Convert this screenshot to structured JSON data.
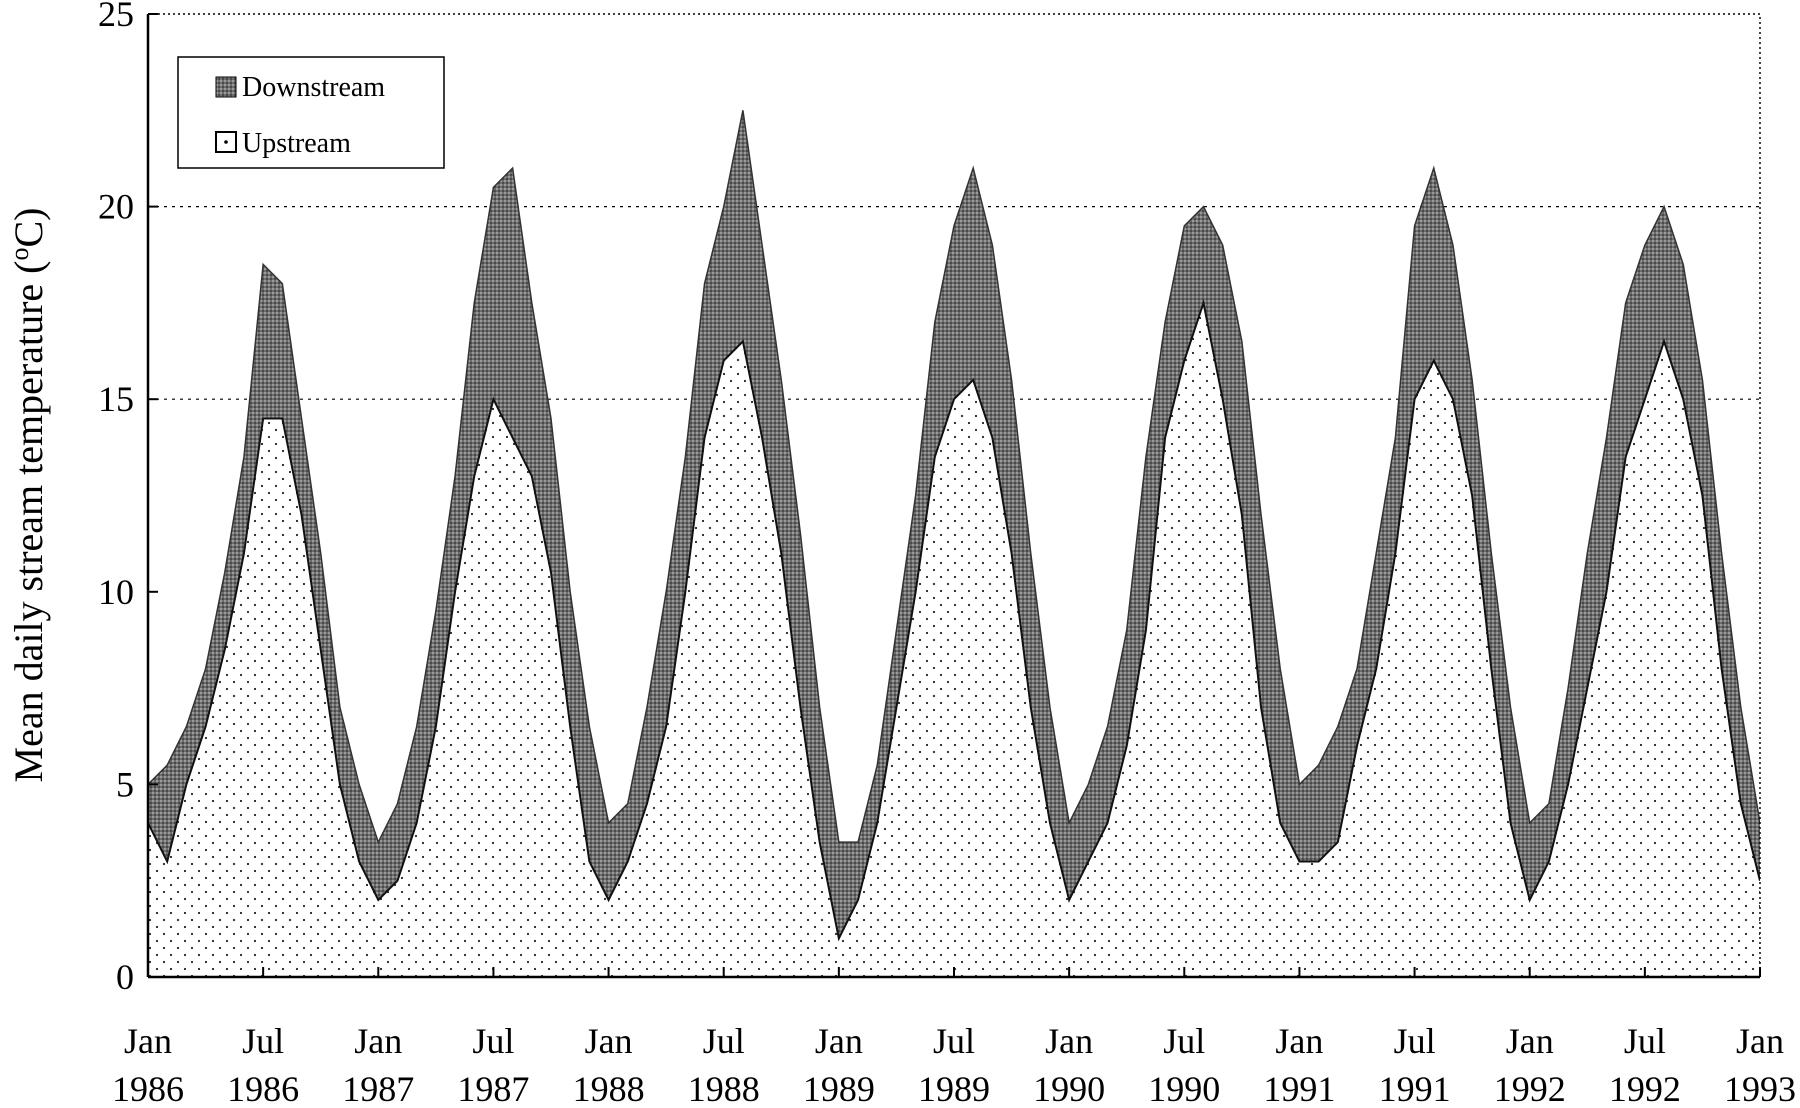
{
  "chart_data": {
    "type": "area",
    "ylabel": "Mean daily stream temperature (",
    "ylabel_sup": "o",
    "ylabel_unit": "C)",
    "ylim": [
      0,
      25
    ],
    "yticks": [
      0,
      5,
      10,
      15,
      20,
      25
    ],
    "xlim": [
      "1986-01",
      "1993-01"
    ],
    "xticks": [
      {
        "month": "Jan",
        "year": "1986",
        "date": "1986-01"
      },
      {
        "month": "Jul",
        "year": "1986",
        "date": "1986-07"
      },
      {
        "month": "Jan",
        "year": "1987",
        "date": "1987-01"
      },
      {
        "month": "Jul",
        "year": "1987",
        "date": "1987-07"
      },
      {
        "month": "Jan",
        "year": "1988",
        "date": "1988-01"
      },
      {
        "month": "Jul",
        "year": "1988",
        "date": "1988-07"
      },
      {
        "month": "Jan",
        "year": "1989",
        "date": "1989-01"
      },
      {
        "month": "Jul",
        "year": "1989",
        "date": "1989-07"
      },
      {
        "month": "Jan",
        "year": "1990",
        "date": "1990-01"
      },
      {
        "month": "Jul",
        "year": "1990",
        "date": "1990-07"
      },
      {
        "month": "Jan",
        "year": "1991",
        "date": "1991-01"
      },
      {
        "month": "Jul",
        "year": "1991",
        "date": "1991-07"
      },
      {
        "month": "Jan",
        "year": "1992",
        "date": "1992-01"
      },
      {
        "month": "Jul",
        "year": "1992",
        "date": "1992-07"
      },
      {
        "month": "Jan",
        "year": "1993",
        "date": "1993-01"
      }
    ],
    "grid": {
      "y": true,
      "style": "dotted",
      "lines": [
        15,
        20
      ]
    },
    "legend": {
      "placement": "top-left",
      "entries": [
        "Downstream",
        "Upstream"
      ]
    },
    "series": [
      {
        "name": "Downstream",
        "fill": "dark-crosshatch",
        "x": [
          "1986-01",
          "1986-02",
          "1986-03",
          "1986-04",
          "1986-05",
          "1986-06",
          "1986-07",
          "1986-08",
          "1986-09",
          "1986-10",
          "1986-11",
          "1986-12",
          "1987-01",
          "1987-02",
          "1987-03",
          "1987-04",
          "1987-05",
          "1987-06",
          "1987-07",
          "1987-08",
          "1987-09",
          "1987-10",
          "1987-11",
          "1987-12",
          "1988-01",
          "1988-02",
          "1988-03",
          "1988-04",
          "1988-05",
          "1988-06",
          "1988-07",
          "1988-08",
          "1988-09",
          "1988-10",
          "1988-11",
          "1988-12",
          "1989-01",
          "1989-02",
          "1989-03",
          "1989-04",
          "1989-05",
          "1989-06",
          "1989-07",
          "1989-08",
          "1989-09",
          "1989-10",
          "1989-11",
          "1989-12",
          "1990-01",
          "1990-02",
          "1990-03",
          "1990-04",
          "1990-05",
          "1990-06",
          "1990-07",
          "1990-08",
          "1990-09",
          "1990-10",
          "1990-11",
          "1990-12",
          "1991-01",
          "1991-02",
          "1991-03",
          "1991-04",
          "1991-05",
          "1991-06",
          "1991-07",
          "1991-08",
          "1991-09",
          "1991-10",
          "1991-11",
          "1991-12",
          "1992-01",
          "1992-02",
          "1992-03",
          "1992-04",
          "1992-05",
          "1992-06",
          "1992-07",
          "1992-08",
          "1992-09",
          "1992-10",
          "1992-11",
          "1992-12",
          "1993-01"
        ],
        "y": [
          5.0,
          5.5,
          6.5,
          8.0,
          10.5,
          13.5,
          18.5,
          18.0,
          14.5,
          11.0,
          7.0,
          5.0,
          3.5,
          4.5,
          6.5,
          9.5,
          13.0,
          17.5,
          20.5,
          21.0,
          17.5,
          14.5,
          10.0,
          6.5,
          4.0,
          4.5,
          7.0,
          10.0,
          13.5,
          18.0,
          20.0,
          22.5,
          19.0,
          15.5,
          11.5,
          7.0,
          3.5,
          3.5,
          5.5,
          9.0,
          12.5,
          17.0,
          19.5,
          21.0,
          19.0,
          15.5,
          11.0,
          7.0,
          4.0,
          5.0,
          6.5,
          9.0,
          13.5,
          17.0,
          19.5,
          20.0,
          19.0,
          16.5,
          12.0,
          8.0,
          5.0,
          5.5,
          6.5,
          8.0,
          11.0,
          14.0,
          19.5,
          21.0,
          19.0,
          15.5,
          11.0,
          7.0,
          4.0,
          4.5,
          7.5,
          11.0,
          14.0,
          17.5,
          19.0,
          20.0,
          18.5,
          15.5,
          11.0,
          7.0,
          4.0
        ]
      },
      {
        "name": "Upstream",
        "fill": "dotted",
        "x": [
          "1986-01",
          "1986-02",
          "1986-03",
          "1986-04",
          "1986-05",
          "1986-06",
          "1986-07",
          "1986-08",
          "1986-09",
          "1986-10",
          "1986-11",
          "1986-12",
          "1987-01",
          "1987-02",
          "1987-03",
          "1987-04",
          "1987-05",
          "1987-06",
          "1987-07",
          "1987-08",
          "1987-09",
          "1987-10",
          "1987-11",
          "1987-12",
          "1988-01",
          "1988-02",
          "1988-03",
          "1988-04",
          "1988-05",
          "1988-06",
          "1988-07",
          "1988-08",
          "1988-09",
          "1988-10",
          "1988-11",
          "1988-12",
          "1989-01",
          "1989-02",
          "1989-03",
          "1989-04",
          "1989-05",
          "1989-06",
          "1989-07",
          "1989-08",
          "1989-09",
          "1989-10",
          "1989-11",
          "1989-12",
          "1990-01",
          "1990-02",
          "1990-03",
          "1990-04",
          "1990-05",
          "1990-06",
          "1990-07",
          "1990-08",
          "1990-09",
          "1990-10",
          "1990-11",
          "1990-12",
          "1991-01",
          "1991-02",
          "1991-03",
          "1991-04",
          "1991-05",
          "1991-06",
          "1991-07",
          "1991-08",
          "1991-09",
          "1991-10",
          "1991-11",
          "1991-12",
          "1992-01",
          "1992-02",
          "1992-03",
          "1992-04",
          "1992-05",
          "1992-06",
          "1992-07",
          "1992-08",
          "1992-09",
          "1992-10",
          "1992-11",
          "1992-12",
          "1993-01"
        ],
        "y": [
          4.0,
          3.0,
          5.0,
          6.5,
          8.5,
          11.0,
          14.5,
          14.5,
          12.0,
          8.5,
          5.0,
          3.0,
          2.0,
          2.5,
          4.0,
          6.5,
          10.0,
          13.0,
          15.0,
          14.0,
          13.0,
          10.5,
          6.5,
          3.0,
          2.0,
          3.0,
          4.5,
          6.5,
          10.0,
          14.0,
          16.0,
          16.5,
          14.0,
          11.0,
          7.0,
          3.5,
          1.0,
          2.0,
          4.0,
          7.0,
          10.0,
          13.5,
          15.0,
          15.5,
          14.0,
          11.0,
          7.0,
          4.0,
          2.0,
          3.0,
          4.0,
          6.0,
          9.0,
          14.0,
          16.0,
          17.5,
          15.0,
          12.0,
          7.0,
          4.0,
          3.0,
          3.0,
          3.5,
          6.0,
          8.0,
          11.0,
          15.0,
          16.0,
          15.0,
          12.5,
          8.0,
          4.0,
          2.0,
          3.0,
          5.0,
          7.5,
          10.0,
          13.5,
          15.0,
          16.5,
          15.0,
          12.5,
          8.0,
          4.5,
          2.5
        ]
      }
    ]
  }
}
